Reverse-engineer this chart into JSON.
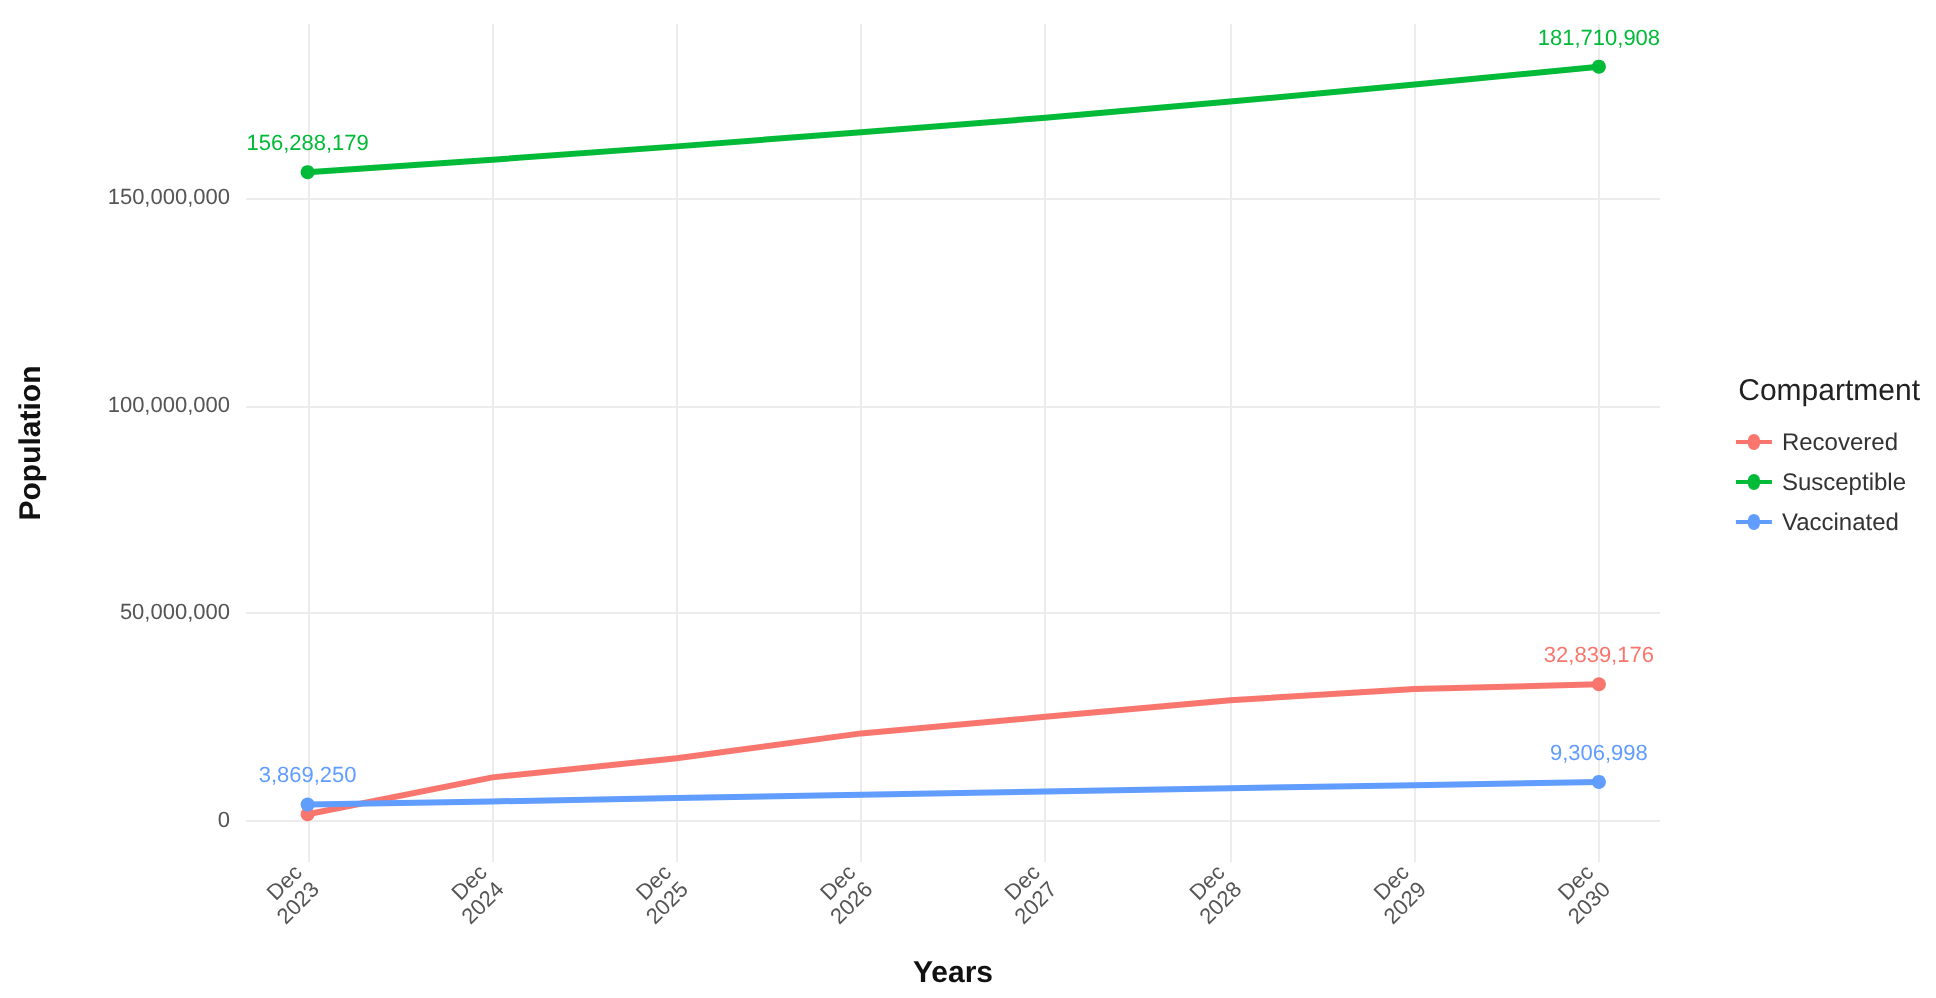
{
  "chart_data": {
    "type": "line",
    "xlabel": "Years",
    "ylabel": "Population",
    "legend_title": "Compartment",
    "x": [
      "2023-12",
      "2024-12",
      "2025-12",
      "2026-12",
      "2027-12",
      "2028-12",
      "2029-12",
      "2030-12"
    ],
    "series": [
      {
        "name": "Recovered",
        "color": "#f8766d",
        "values": [
          1500000,
          10400000,
          15000000,
          21000000,
          25000000,
          29000000,
          31700000,
          32839176
        ],
        "value_labels": [
          null,
          null,
          null,
          null,
          null,
          null,
          null,
          "32,839,176"
        ]
      },
      {
        "name": "Susceptible",
        "color": "#00ba38",
        "values": [
          156288179,
          159300000,
          162500000,
          165900000,
          169400000,
          173300000,
          177400000,
          181710908
        ],
        "value_labels": [
          "156,288,179",
          null,
          null,
          null,
          null,
          null,
          null,
          "181,710,908"
        ]
      },
      {
        "name": "Vaccinated",
        "color": "#619cff",
        "values": [
          3869250,
          4600000,
          5400000,
          6200000,
          7000000,
          7800000,
          8500000,
          9306998
        ],
        "value_labels": [
          "3,869,250",
          null,
          null,
          null,
          null,
          null,
          null,
          "9,306,998"
        ]
      }
    ],
    "xlim": [
      "2023-08",
      "2031-04"
    ],
    "xticks": [
      {
        "value": "2023-12",
        "label": "Dec\n2023"
      },
      {
        "value": "2024-12",
        "label": "Dec\n2024"
      },
      {
        "value": "2025-12",
        "label": "Dec\n2025"
      },
      {
        "value": "2026-12",
        "label": "Dec\n2026"
      },
      {
        "value": "2027-12",
        "label": "Dec\n2027"
      },
      {
        "value": "2028-12",
        "label": "Dec\n2028"
      },
      {
        "value": "2029-12",
        "label": "Dec\n2029"
      },
      {
        "value": "2030-12",
        "label": "Dec\n2030"
      }
    ],
    "ylim": [
      -10000000,
      192000000
    ],
    "yticks": [
      {
        "value": 0,
        "label": "0"
      },
      {
        "value": 50000000,
        "label": "50,000,000"
      },
      {
        "value": 100000000,
        "label": "100,000,000"
      },
      {
        "value": 150000000,
        "label": "150,000,000"
      }
    ],
    "grid": true,
    "legend": "right",
    "line_style": "solid"
  }
}
